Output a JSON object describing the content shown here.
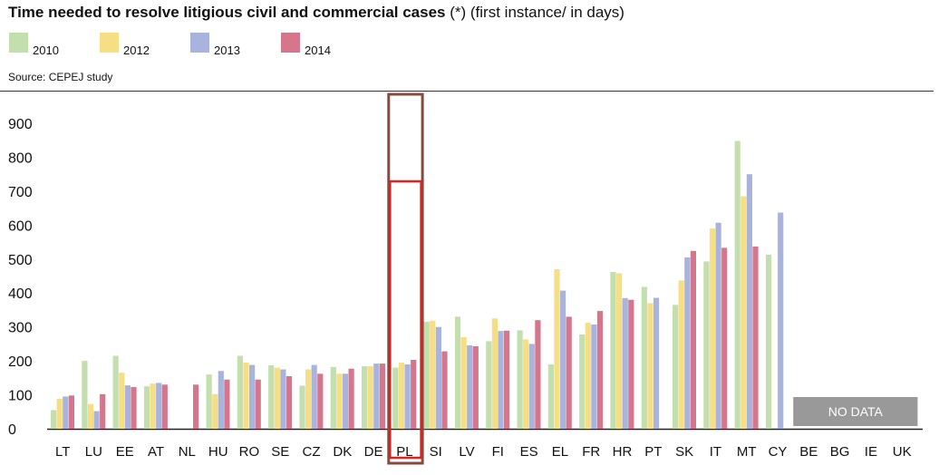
{
  "header": {
    "title_bold": "Time needed to resolve litigious civil and commercial cases",
    "title_note": "(*) (first instance/ in days)",
    "source": "Source: CEPEJ study"
  },
  "colors": {
    "2010": "#c3dfae",
    "2012": "#f5de83",
    "2013": "#a9b4de",
    "2014": "#d5768d",
    "highlight_outer": "#8a4a3a",
    "highlight_inner": "#e02020",
    "nodata": "#999999"
  },
  "chart_data": {
    "type": "bar",
    "title": "Time needed to resolve litigious civil and commercial cases",
    "ylim": [
      0,
      900
    ],
    "yticks": [
      0,
      100,
      200,
      300,
      400,
      500,
      600,
      700,
      800,
      900
    ],
    "grid": false,
    "legend_placement": "top-left",
    "highlighted_category": "PL",
    "nodata_label": "NO DATA",
    "nodata_categories": [
      "BE",
      "BG",
      "IE",
      "UK"
    ],
    "categories": [
      "LT",
      "LU",
      "EE",
      "AT",
      "NL",
      "HU",
      "RO",
      "SE",
      "CZ",
      "DK",
      "DE",
      "PL",
      "SI",
      "LV",
      "FI",
      "ES",
      "EL",
      "FR",
      "HR",
      "PT",
      "SK",
      "IT",
      "MT",
      "CY",
      "BE",
      "BG",
      "IE",
      "UK"
    ],
    "series": [
      {
        "name": "2010",
        "values": [
          55,
          200,
          215,
          125,
          null,
          160,
          215,
          187,
          127,
          182,
          184,
          180,
          315,
          330,
          258,
          290,
          190,
          278,
          462,
          418,
          365,
          493,
          848,
          513,
          null,
          null,
          null,
          null
        ]
      },
      {
        "name": "2012",
        "values": [
          88,
          73,
          165,
          133,
          null,
          102,
          195,
          180,
          175,
          162,
          184,
          195,
          318,
          270,
          325,
          263,
          470,
          312,
          458,
          370,
          437,
          590,
          685,
          null,
          null,
          null,
          null,
          null
        ]
      },
      {
        "name": "2013",
        "values": [
          95,
          52,
          128,
          135,
          null,
          170,
          188,
          175,
          188,
          162,
          192,
          190,
          300,
          246,
          288,
          250,
          407,
          307,
          385,
          386,
          505,
          607,
          750,
          637,
          null,
          null,
          null,
          null
        ]
      },
      {
        "name": "2014",
        "values": [
          98,
          102,
          123,
          130,
          130,
          145,
          145,
          155,
          162,
          177,
          192,
          203,
          228,
          243,
          289,
          320,
          330,
          347,
          380,
          null,
          524,
          533,
          537,
          null,
          null,
          null,
          null,
          null
        ]
      }
    ]
  }
}
